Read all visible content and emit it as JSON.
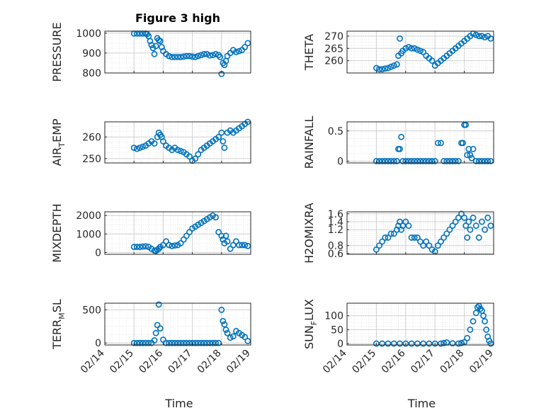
{
  "figure_title": "Figure 3 high",
  "colors": {
    "marker": "#0072BD",
    "axis": "#262626",
    "grid": "#d0d0d0",
    "minor_grid": "#e6e6e6"
  },
  "chart_data": [
    {
      "type": "scatter",
      "name": "pressure",
      "title": "Figure 3 high",
      "ylabel": "PRESSURE",
      "xlabel": "",
      "ylim": [
        800,
        1010
      ],
      "yticks": [
        800,
        900,
        1000
      ],
      "xlim": [
        14.0,
        19.0
      ],
      "grid": true,
      "x": [
        15.0,
        15.1,
        15.2,
        15.3,
        15.4,
        15.45,
        15.5,
        15.55,
        15.6,
        15.65,
        15.7,
        15.75,
        15.8,
        15.85,
        15.9,
        15.95,
        16.0,
        16.1,
        16.2,
        16.3,
        16.4,
        16.5,
        16.6,
        16.7,
        16.8,
        16.9,
        17.0,
        17.1,
        17.2,
        17.3,
        17.4,
        17.5,
        17.6,
        17.7,
        17.8,
        17.9,
        17.95,
        18.0,
        18.05,
        18.1,
        18.15,
        18.2,
        18.3,
        18.4,
        18.5,
        18.6,
        18.7,
        18.8,
        18.9
      ],
      "y": [
        998,
        998,
        998,
        998,
        998,
        995,
        985,
        960,
        940,
        925,
        895,
        935,
        975,
        965,
        960,
        930,
        910,
        895,
        885,
        880,
        880,
        880,
        880,
        882,
        885,
        885,
        882,
        880,
        885,
        890,
        895,
        895,
        888,
        890,
        895,
        890,
        880,
        795,
        850,
        840,
        860,
        885,
        900,
        915,
        905,
        910,
        915,
        930,
        950
      ]
    },
    {
      "type": "scatter",
      "name": "theta",
      "ylabel": "THETA",
      "xlabel": "",
      "ylim": [
        255,
        272
      ],
      "yticks": [
        260,
        265,
        270
      ],
      "xlim": [
        14.0,
        19.0
      ],
      "grid": true,
      "x": [
        15.0,
        15.1,
        15.2,
        15.3,
        15.4,
        15.5,
        15.6,
        15.7,
        15.75,
        15.8,
        15.85,
        15.9,
        16.0,
        16.1,
        16.2,
        16.3,
        16.4,
        16.5,
        16.6,
        16.7,
        16.8,
        16.9,
        17.0,
        17.1,
        17.2,
        17.3,
        17.4,
        17.5,
        17.6,
        17.7,
        17.8,
        17.9,
        18.0,
        18.1,
        18.2,
        18.3,
        18.4,
        18.5,
        18.6,
        18.7,
        18.8,
        18.9
      ],
      "y": [
        257,
        256.5,
        256.5,
        256.8,
        257,
        257.5,
        258,
        258.5,
        262,
        269,
        263,
        264,
        265,
        265.5,
        265,
        265,
        264.5,
        264,
        263.5,
        262,
        261,
        260,
        258,
        259,
        260,
        261,
        262,
        263,
        264,
        265,
        266,
        267,
        268,
        269,
        270,
        271,
        270.5,
        270,
        270,
        269.5,
        270,
        269
      ]
    },
    {
      "type": "scatter",
      "name": "air_temp",
      "ylabel": "AIR",
      "ylabel_sub": "T",
      "ylabel_rest": "EMP",
      "xlabel": "",
      "ylim": [
        248,
        267
      ],
      "yticks": [
        250,
        260
      ],
      "xlim": [
        14.0,
        19.0
      ],
      "grid": true,
      "x": [
        15.0,
        15.1,
        15.2,
        15.3,
        15.4,
        15.5,
        15.6,
        15.7,
        15.8,
        15.85,
        15.9,
        15.95,
        16.0,
        16.1,
        16.2,
        16.3,
        16.4,
        16.5,
        16.6,
        16.7,
        16.8,
        16.9,
        17.0,
        17.1,
        17.2,
        17.3,
        17.4,
        17.5,
        17.6,
        17.7,
        17.8,
        17.9,
        18.0,
        18.05,
        18.1,
        18.2,
        18.3,
        18.4,
        18.5,
        18.6,
        18.7,
        18.8,
        18.9
      ],
      "y": [
        255,
        254.5,
        255,
        255.5,
        256,
        257,
        258,
        257,
        260,
        262,
        261,
        260,
        258,
        256,
        255,
        254,
        255,
        254,
        253.5,
        253,
        252,
        251,
        249,
        250,
        252,
        254,
        255,
        256,
        257,
        258,
        259,
        260,
        262,
        258,
        255,
        262,
        263,
        262,
        263,
        264,
        265,
        266,
        267
      ]
    },
    {
      "type": "scatter",
      "name": "rainfall",
      "ylabel": "RAINFALL",
      "xlabel": "",
      "ylim": [
        -0.03,
        0.65
      ],
      "yticks": [
        0,
        0.5
      ],
      "xlim": [
        14.0,
        19.0
      ],
      "grid": true,
      "x": [
        15.0,
        15.1,
        15.2,
        15.3,
        15.4,
        15.5,
        15.6,
        15.7,
        15.75,
        15.8,
        15.85,
        15.9,
        16.0,
        16.1,
        16.2,
        16.3,
        16.4,
        16.5,
        16.6,
        16.7,
        16.8,
        16.9,
        17.0,
        17.1,
        17.2,
        17.3,
        17.4,
        17.5,
        17.6,
        17.7,
        17.8,
        17.9,
        17.95,
        18.0,
        18.05,
        18.1,
        18.15,
        18.2,
        18.25,
        18.3,
        18.4,
        18.5,
        18.6,
        18.7,
        18.8,
        18.9
      ],
      "y": [
        0,
        0,
        0,
        0,
        0,
        0,
        0,
        0,
        0.2,
        0.2,
        0.4,
        0,
        0,
        0,
        0,
        0,
        0,
        0,
        0,
        0,
        0,
        0,
        0,
        0.3,
        0.3,
        0,
        0,
        0,
        0,
        0,
        0,
        0.3,
        0.3,
        0.6,
        0.6,
        0.1,
        0.2,
        0.1,
        0.05,
        0.2,
        0,
        0,
        0,
        0,
        0,
        0
      ]
    },
    {
      "type": "scatter",
      "name": "mixdepth",
      "ylabel": "MIXDEPTH",
      "xlabel": "",
      "ylim": [
        -100,
        2200
      ],
      "yticks": [
        0,
        1000,
        2000
      ],
      "xlim": [
        14.0,
        19.0
      ],
      "grid": true,
      "x": [
        15.0,
        15.1,
        15.2,
        15.3,
        15.4,
        15.5,
        15.6,
        15.7,
        15.75,
        15.8,
        15.85,
        15.9,
        16.0,
        16.1,
        16.2,
        16.3,
        16.4,
        16.5,
        16.6,
        16.7,
        16.8,
        16.9,
        17.0,
        17.1,
        17.2,
        17.3,
        17.4,
        17.5,
        17.6,
        17.7,
        17.8,
        17.9,
        18.0,
        18.05,
        18.1,
        18.15,
        18.2,
        18.3,
        18.4,
        18.5,
        18.6,
        18.7,
        18.8,
        18.9
      ],
      "y": [
        300,
        300,
        300,
        320,
        330,
        300,
        200,
        100,
        80,
        150,
        200,
        300,
        400,
        600,
        400,
        350,
        380,
        400,
        500,
        700,
        900,
        1100,
        1300,
        1400,
        1500,
        1600,
        1700,
        1800,
        1900,
        2000,
        1900,
        1100,
        900,
        700,
        500,
        900,
        600,
        200,
        400,
        600,
        400,
        400,
        400,
        350
      ]
    },
    {
      "type": "scatter",
      "name": "h2omixra",
      "ylabel": "H2OMIXRA",
      "xlabel": "",
      "ylim": [
        0.58,
        1.65
      ],
      "yticks": [
        0.6,
        0.8,
        1.2,
        1.4,
        1.6
      ],
      "xlim": [
        14.0,
        19.0
      ],
      "grid": true,
      "x": [
        15.0,
        15.1,
        15.2,
        15.3,
        15.4,
        15.5,
        15.6,
        15.7,
        15.75,
        15.8,
        15.85,
        15.9,
        16.0,
        16.1,
        16.2,
        16.3,
        16.4,
        16.5,
        16.6,
        16.7,
        16.8,
        16.9,
        17.0,
        17.1,
        17.2,
        17.3,
        17.4,
        17.5,
        17.6,
        17.7,
        17.8,
        17.9,
        18.0,
        18.05,
        18.1,
        18.15,
        18.2,
        18.3,
        18.4,
        18.5,
        18.6,
        18.7,
        18.8,
        18.9
      ],
      "y": [
        0.7,
        0.8,
        0.9,
        1.0,
        1.0,
        1.1,
        1.1,
        1.2,
        1.3,
        1.4,
        1.2,
        1.3,
        1.4,
        1.3,
        1.0,
        1.0,
        1.0,
        0.9,
        0.8,
        0.9,
        0.8,
        0.7,
        0.65,
        0.8,
        0.9,
        1.0,
        1.1,
        1.2,
        1.3,
        1.4,
        1.5,
        1.6,
        1.5,
        1.3,
        1.0,
        1.4,
        1.2,
        1.5,
        1.3,
        1.0,
        1.4,
        1.2,
        1.5,
        1.3
      ]
    },
    {
      "type": "scatter",
      "name": "terr_msl",
      "ylabel": "TERR",
      "ylabel_sub": "M",
      "ylabel_rest": "SL",
      "xlabel": "Time",
      "ylim": [
        -30,
        600
      ],
      "yticks": [
        0,
        500
      ],
      "xlim": [
        14.0,
        19.0
      ],
      "xtick_labels": [
        "02/14",
        "02/15",
        "02/16",
        "02/17",
        "02/18",
        "02/19"
      ],
      "grid": true,
      "x": [
        15.0,
        15.1,
        15.2,
        15.3,
        15.4,
        15.5,
        15.6,
        15.7,
        15.75,
        15.8,
        15.85,
        15.9,
        16.0,
        16.1,
        16.2,
        16.3,
        16.4,
        16.5,
        16.6,
        16.7,
        16.8,
        16.9,
        17.0,
        17.1,
        17.2,
        17.3,
        17.4,
        17.5,
        17.6,
        17.7,
        17.8,
        17.9,
        18.0,
        18.05,
        18.1,
        18.15,
        18.2,
        18.3,
        18.4,
        18.5,
        18.6,
        18.7,
        18.8,
        18.9
      ],
      "y": [
        0,
        0,
        0,
        0,
        0,
        0,
        0,
        40,
        150,
        270,
        580,
        220,
        50,
        0,
        0,
        0,
        0,
        0,
        0,
        0,
        0,
        0,
        0,
        0,
        0,
        0,
        0,
        0,
        0,
        0,
        0,
        0,
        500,
        330,
        280,
        200,
        150,
        80,
        100,
        180,
        150,
        120,
        90,
        30
      ]
    },
    {
      "type": "scatter",
      "name": "sun_flux",
      "ylabel": "SUN",
      "ylabel_sub": "F",
      "ylabel_rest": "LUX",
      "xlabel": "Time",
      "ylim": [
        -5,
        145
      ],
      "yticks": [
        0,
        50,
        100
      ],
      "xlim": [
        14.0,
        19.0
      ],
      "xtick_labels": [
        "02/14",
        "02/15",
        "02/16",
        "02/17",
        "02/18",
        "02/19"
      ],
      "grid": true,
      "x": [
        15.0,
        15.2,
        15.4,
        15.6,
        15.8,
        16.0,
        16.2,
        16.4,
        16.6,
        16.8,
        17.0,
        17.2,
        17.3,
        17.4,
        17.6,
        17.8,
        17.9,
        18.0,
        18.1,
        18.2,
        18.3,
        18.4,
        18.45,
        18.5,
        18.55,
        18.6,
        18.65,
        18.7,
        18.75,
        18.8,
        18.85,
        18.9
      ],
      "y": [
        0,
        0,
        0,
        0,
        0,
        0,
        0,
        0,
        0,
        0,
        0,
        0,
        2,
        4,
        1,
        0,
        2,
        5,
        20,
        50,
        80,
        110,
        130,
        135,
        125,
        118,
        100,
        80,
        50,
        25,
        10,
        0
      ]
    }
  ]
}
